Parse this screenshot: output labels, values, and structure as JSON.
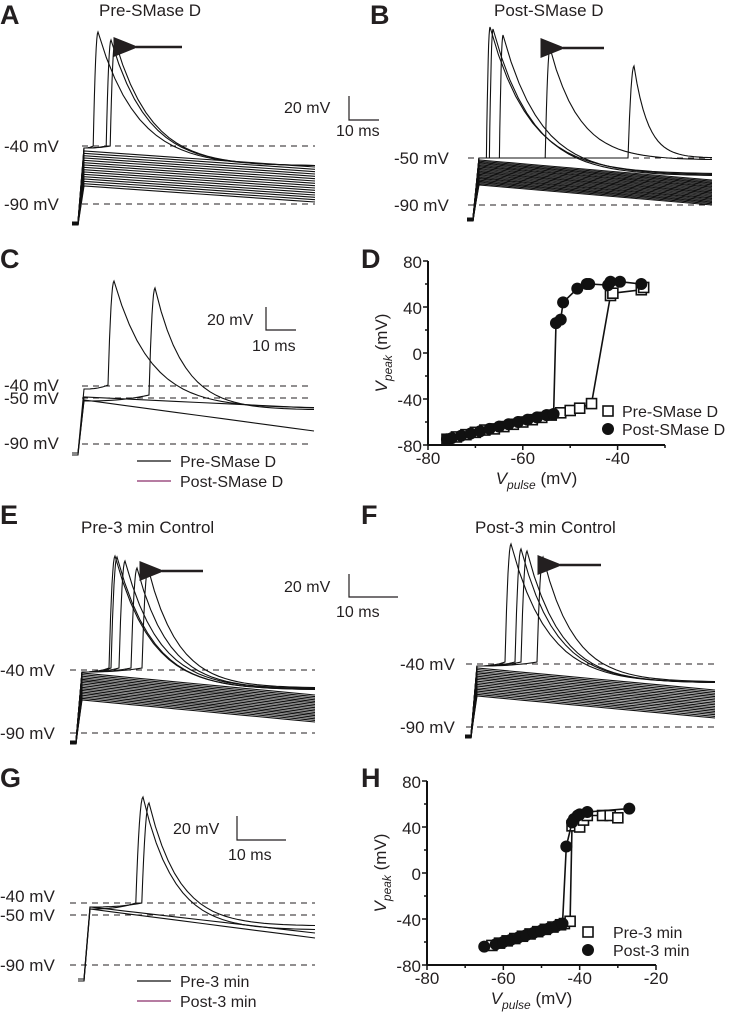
{
  "figure": {
    "panels": {
      "A": {
        "label": "A",
        "title": "Pre-SMase D",
        "levels": [
          "-40 mV",
          "-90 mV"
        ],
        "scale_bar": {
          "v": "20 mV",
          "t": "10 ms"
        }
      },
      "B": {
        "label": "B",
        "title": "Post-SMase D",
        "levels": [
          "-50 mV",
          "-90 mV"
        ]
      },
      "C": {
        "label": "C",
        "levels": [
          "-40 mV",
          "-50 mV",
          "-90 mV"
        ],
        "scale_bar": {
          "v": "20 mV",
          "t": "10 ms"
        },
        "legend": [
          "Pre-SMase D",
          "Post-SMase D"
        ]
      },
      "D": {
        "label": "D"
      },
      "E": {
        "label": "E",
        "title": "Pre-3 min Control",
        "levels": [
          "-40 mV",
          "-90 mV"
        ],
        "scale_bar": {
          "v": "20 mV",
          "t": "10 ms"
        }
      },
      "F": {
        "label": "F",
        "title": "Post-3 min Control",
        "levels": [
          "-40 mV",
          "-90 mV"
        ]
      },
      "G": {
        "label": "G",
        "levels": [
          "-40 mV",
          "-50 mV",
          "-90 mV"
        ],
        "scale_bar": {
          "v": "20 mV",
          "t": "10 ms"
        },
        "legend": [
          "Pre-3 min",
          "Post-3 min"
        ]
      },
      "H": {
        "label": "H"
      }
    },
    "colors": {
      "pre": "#111111",
      "post": "#8b2f6b"
    }
  },
  "chart_data": [
    {
      "panel": "D",
      "type": "scatter",
      "title": "",
      "xlabel": "V",
      "xlabel_sub": "pulse",
      "xlabel_unit": " (mV)",
      "ylabel": "V",
      "ylabel_sub": "peak",
      "ylabel_unit": " (mV)",
      "xlim": [
        -80,
        -30
      ],
      "ylim": [
        -80,
        80
      ],
      "xticks": [
        -80,
        -60,
        -40
      ],
      "yticks": [
        -80,
        -40,
        0,
        40,
        80
      ],
      "legend_position": "bottom-right",
      "series": [
        {
          "name": "Pre-SMase D",
          "marker": "open-square",
          "x": [
            -76,
            -74,
            -72,
            -70,
            -68,
            -66,
            -64,
            -62,
            -60,
            -58,
            -56,
            -54,
            -52,
            -50,
            -48,
            -45.5,
            -41.5,
            -41,
            -35,
            -34.5
          ],
          "y": [
            -75,
            -73,
            -71,
            -69,
            -67,
            -66,
            -64,
            -62,
            -60,
            -58,
            -56,
            -54,
            -52,
            -50,
            -48,
            -44,
            50,
            52,
            55,
            57
          ]
        },
        {
          "name": "Post-SMase D",
          "marker": "filled-circle",
          "x": [
            -76,
            -75,
            -73,
            -71,
            -69,
            -67,
            -65,
            -63,
            -61,
            -59,
            -57,
            -55,
            -53.5,
            -53,
            -52,
            -51.5,
            -48.5,
            -46.5,
            -46,
            -42,
            -41.5,
            -39.5,
            -35
          ],
          "y": [
            -75,
            -74,
            -72,
            -70,
            -68,
            -66,
            -64,
            -62,
            -60,
            -58,
            -56,
            -54,
            -53,
            26,
            29,
            44,
            56,
            60,
            60,
            59,
            62,
            62,
            60
          ]
        }
      ]
    },
    {
      "panel": "H",
      "type": "scatter",
      "title": "",
      "xlabel": "V",
      "xlabel_sub": "pulse",
      "xlabel_unit": " (mV)",
      "ylabel": "V",
      "ylabel_sub": "peak",
      "ylabel_unit": " (mV)",
      "xlim": [
        -80,
        -20
      ],
      "ylim": [
        -80,
        80
      ],
      "xticks": [
        -80,
        -60,
        -40,
        -20
      ],
      "yticks": [
        -80,
        -40,
        0,
        40,
        80
      ],
      "legend_position": "bottom-right",
      "series": [
        {
          "name": "Pre-3 min",
          "marker": "open-square",
          "x": [
            -63,
            -61,
            -59,
            -57,
            -55,
            -53,
            -51,
            -49,
            -47,
            -45,
            -44,
            -42.5,
            -42,
            -40,
            -39,
            -38,
            -34,
            -32,
            -30
          ],
          "y": [
            -63,
            -61,
            -59,
            -57,
            -55,
            -53,
            -51,
            -49,
            -47,
            -45,
            -44,
            -42,
            41,
            40,
            46,
            50,
            50,
            50,
            48
          ]
        },
        {
          "name": "Post-3 min",
          "marker": "filled-circle",
          "x": [
            -65,
            -62,
            -60,
            -58,
            -56,
            -54,
            -52,
            -50,
            -48,
            -46,
            -44.5,
            -43.5,
            -42,
            -41.5,
            -40.5,
            -40,
            -38,
            -27
          ],
          "y": [
            -64,
            -62,
            -60,
            -58,
            -56,
            -54,
            -52,
            -50,
            -48,
            -46,
            -44,
            23,
            44,
            47,
            50,
            51,
            53,
            56
          ]
        }
      ]
    }
  ]
}
